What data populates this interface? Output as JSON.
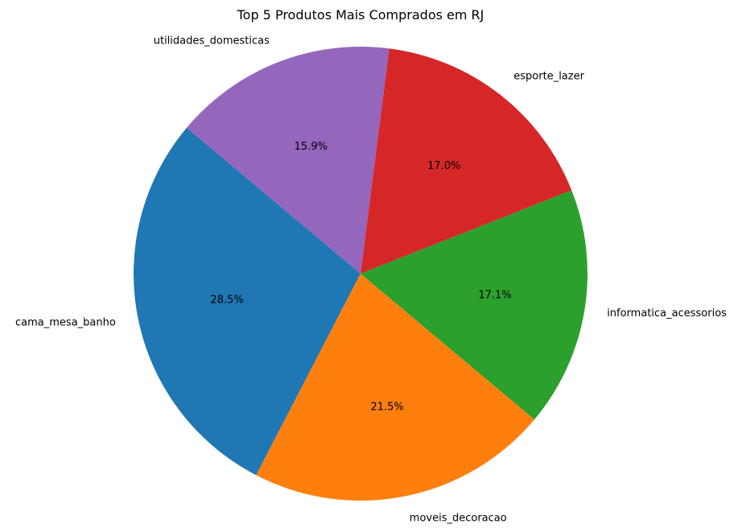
{
  "chart_data": {
    "type": "pie",
    "title": "Top 5 Produtos Mais Comprados em RJ",
    "categories": [
      "cama_mesa_banho",
      "moveis_decoracao",
      "informatica_acessorios",
      "esporte_lazer",
      "utilidades_domesticas"
    ],
    "values": [
      28.5,
      21.5,
      17.1,
      17.0,
      15.9
    ],
    "value_labels": [
      "28.5%",
      "21.5%",
      "17.1%",
      "17.0%",
      "15.9%"
    ],
    "colors": [
      "#1f77b4",
      "#ff7f0e",
      "#2ca02c",
      "#d62728",
      "#9467bd"
    ],
    "start_angle_deg": 140,
    "direction": "counterclockwise",
    "legend": "none"
  }
}
